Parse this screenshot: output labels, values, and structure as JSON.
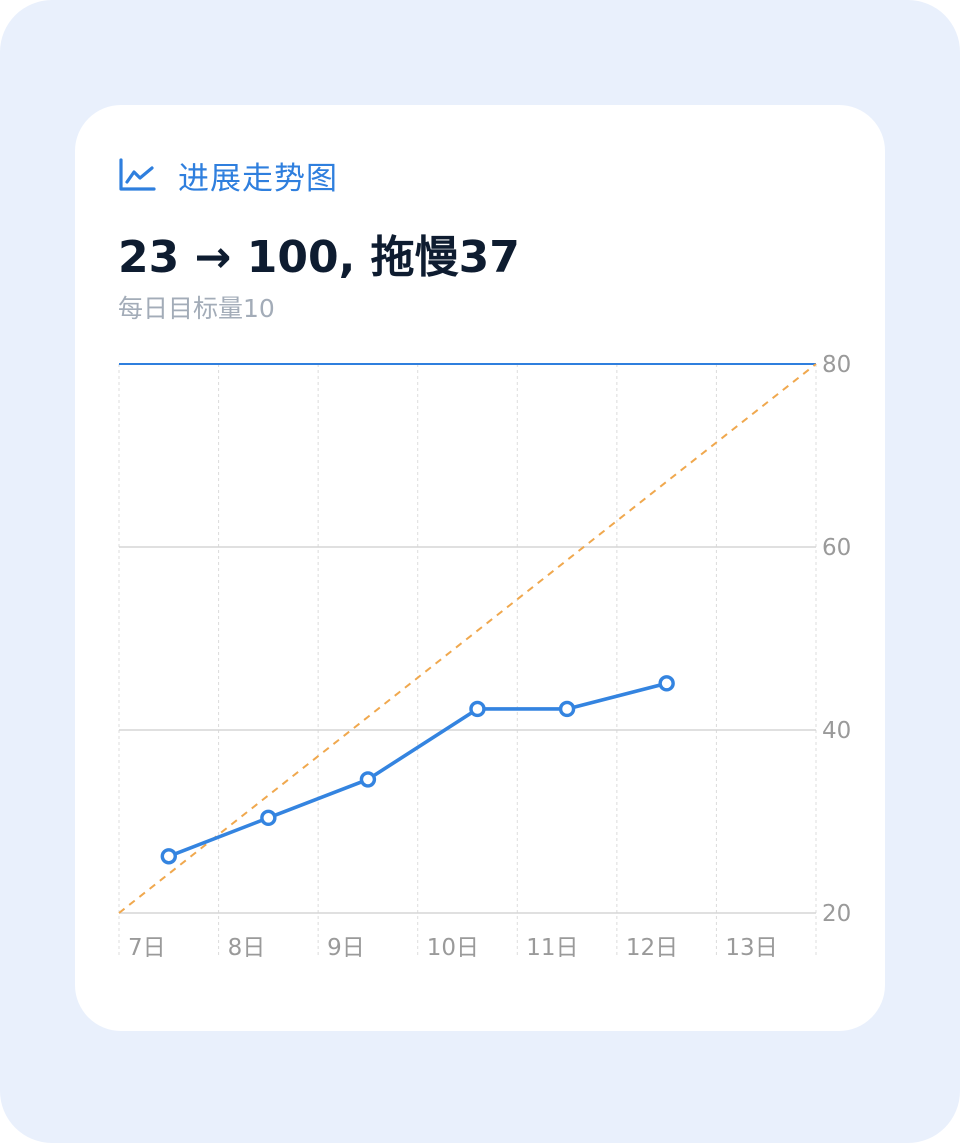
{
  "card": {
    "title": "进展走势图",
    "headline": "23 → 100, 拖慢37",
    "subtitle": "每日目标量10"
  },
  "icons": {
    "title_icon": "line-chart-icon"
  },
  "colors": {
    "accent": "#2f7fde",
    "actual_line": "#3484e0",
    "target_line": "#f0a84e",
    "grid": "#d5d5d5",
    "background": "#e9f0fc"
  },
  "chart_data": {
    "type": "line",
    "categories": [
      "7日",
      "8日",
      "9日",
      "10日",
      "11日",
      "12日",
      "13日"
    ],
    "y_ticks": [
      20,
      40,
      60,
      80
    ],
    "ylim": [
      20,
      80
    ],
    "y_axis_position": "right",
    "grid": true,
    "series": [
      {
        "style": "solid-with-markers",
        "x": [
          0.5,
          1.5,
          2.5,
          3.6,
          4.5,
          5.5
        ],
        "values": [
          26.2,
          30.4,
          34.6,
          42.3,
          42.3,
          45.1
        ]
      },
      {
        "style": "dashed",
        "x": [
          0,
          7
        ],
        "values": [
          20,
          80
        ]
      },
      {
        "style": "solid-top-line",
        "x": [
          0,
          7
        ],
        "values": [
          80,
          80
        ]
      }
    ]
  }
}
